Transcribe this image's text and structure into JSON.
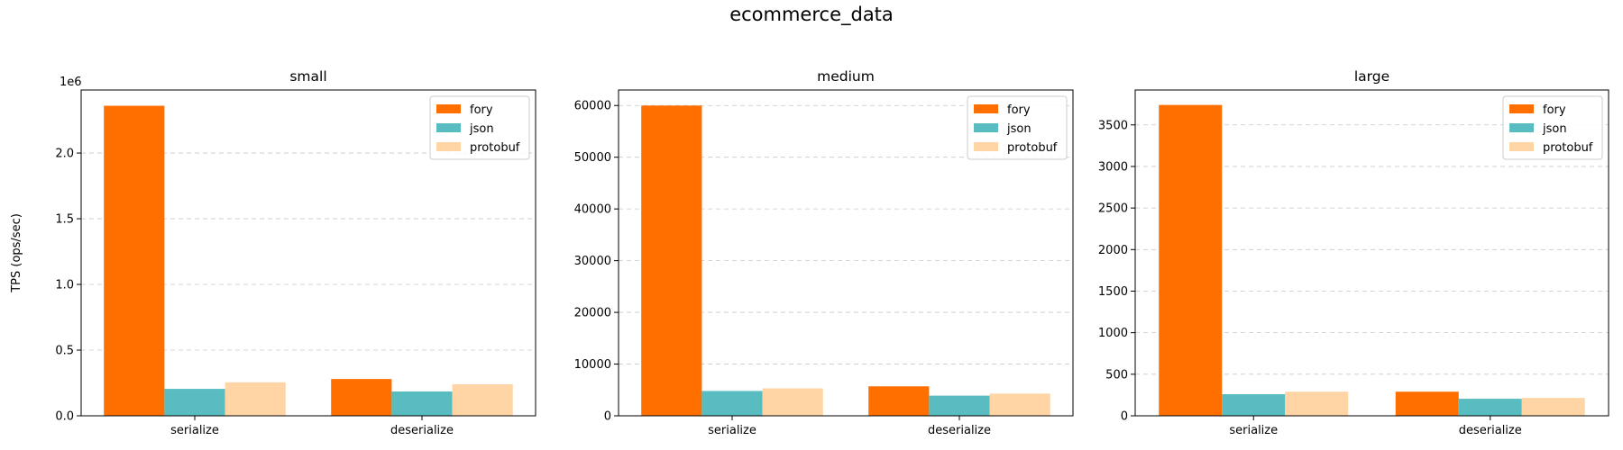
{
  "title": "ecommerce_data",
  "series_colors": {
    "fory": "#FF6F00",
    "json": "#58BCC0",
    "protobuf": "#FFD5A6"
  },
  "chart_data": [
    {
      "type": "bar",
      "title": "small",
      "ylabel": "TPS (ops/sec)",
      "offset_label": "1e6",
      "categories": [
        "serialize",
        "deserialize"
      ],
      "series": [
        {
          "name": "fory",
          "values": [
            2360000,
            280000
          ]
        },
        {
          "name": "json",
          "values": [
            205000,
            185000
          ]
        },
        {
          "name": "protobuf",
          "values": [
            255000,
            240000
          ]
        }
      ],
      "ylim": [
        0,
        2480000
      ],
      "yticks": [
        0,
        500000,
        1000000,
        1500000,
        2000000
      ],
      "ytick_labels": [
        "0.0",
        "0.5",
        "1.0",
        "1.5",
        "2.0"
      ],
      "grid": true,
      "legend": "top-right"
    },
    {
      "type": "bar",
      "title": "medium",
      "ylabel": "",
      "offset_label": "",
      "categories": [
        "serialize",
        "deserialize"
      ],
      "series": [
        {
          "name": "fory",
          "values": [
            60000,
            5700
          ]
        },
        {
          "name": "json",
          "values": [
            4800,
            3900
          ]
        },
        {
          "name": "protobuf",
          "values": [
            5300,
            4300
          ]
        }
      ],
      "ylim": [
        0,
        63000
      ],
      "yticks": [
        0,
        10000,
        20000,
        30000,
        40000,
        50000,
        60000
      ],
      "ytick_labels": [
        "0",
        "10000",
        "20000",
        "30000",
        "40000",
        "50000",
        "60000"
      ],
      "grid": true,
      "legend": "top-right"
    },
    {
      "type": "bar",
      "title": "large",
      "ylabel": "",
      "offset_label": "",
      "categories": [
        "serialize",
        "deserialize"
      ],
      "series": [
        {
          "name": "fory",
          "values": [
            3740,
            290
          ]
        },
        {
          "name": "json",
          "values": [
            260,
            205
          ]
        },
        {
          "name": "protobuf",
          "values": [
            290,
            215
          ]
        }
      ],
      "ylim": [
        0,
        3920
      ],
      "yticks": [
        0,
        500,
        1000,
        1500,
        2000,
        2500,
        3000,
        3500
      ],
      "ytick_labels": [
        "0",
        "500",
        "1000",
        "1500",
        "2000",
        "2500",
        "3000",
        "3500"
      ],
      "grid": true,
      "legend": "top-right"
    }
  ]
}
